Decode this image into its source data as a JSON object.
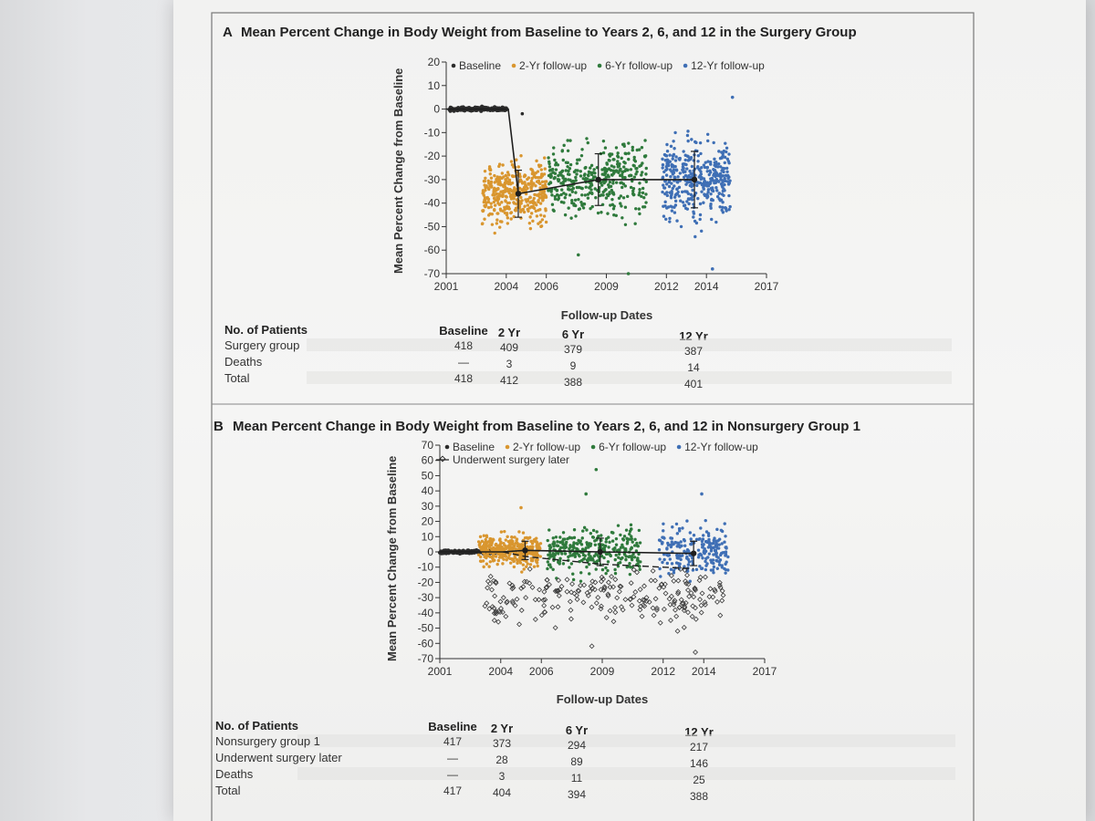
{
  "colors": {
    "baseline": "#2b2b2b",
    "yr2": "#d9962f",
    "yr6": "#2f7a3c",
    "yr12": "#3f6fb5",
    "surgery_later": "#3a3a3a",
    "mean_line": "#1e1e1e",
    "row_shade": "#e2e2e0"
  },
  "chart_data": [
    {
      "id": "A",
      "type": "scatter",
      "panel_letter": "A",
      "title": "Mean Percent Change in Body Weight from Baseline to Years 2, 6, and 12 in the Surgery Group",
      "ylabel": "Mean Percent Change from Baseline",
      "xlabel": "Follow-up Dates",
      "x_ticks": [
        2001,
        2004,
        2006,
        2009,
        2012,
        2014,
        2017
      ],
      "y_ticks": [
        20,
        10,
        0,
        -10,
        -20,
        -30,
        -40,
        -50,
        -60,
        -70
      ],
      "xlim": [
        2001,
        2017
      ],
      "ylim": [
        -70,
        20
      ],
      "legend": [
        "Baseline",
        "2-Yr follow-up",
        "6-Yr follow-up",
        "12-Yr follow-up"
      ],
      "legend_position": "top-left",
      "series": [
        {
          "name": "Baseline",
          "color_key": "baseline",
          "x_range": [
            2001.0,
            2004.0
          ],
          "y_center": 0,
          "y_spread": 0.5,
          "n": 160
        },
        {
          "name": "2-Yr follow-up",
          "color_key": "yr2",
          "x_range": [
            2002.8,
            2006.0
          ],
          "y_center": -36,
          "y_spread": 9,
          "n": 400
        },
        {
          "name": "6-Yr follow-up",
          "color_key": "yr6",
          "x_range": [
            2006.1,
            2011.0
          ],
          "y_center": -30,
          "y_spread": 10,
          "n": 380
        },
        {
          "name": "12-Yr follow-up",
          "color_key": "yr12",
          "x_range": [
            2011.8,
            2015.2
          ],
          "y_center": -30,
          "y_spread": 11,
          "n": 390
        }
      ],
      "outliers": [
        {
          "series": "Baseline",
          "x": 2004.8,
          "y": -2
        },
        {
          "series": "12-Yr follow-up",
          "x": 2015.3,
          "y": 5
        },
        {
          "series": "12-Yr follow-up",
          "x": 2014.3,
          "y": -68
        },
        {
          "series": "6-Yr follow-up",
          "x": 2010.1,
          "y": -70
        },
        {
          "series": "6-Yr follow-up",
          "x": 2007.6,
          "y": -62
        }
      ],
      "mean_line": [
        {
          "x": 2001.0,
          "y": 0
        },
        {
          "x": 2004.1,
          "y": 0
        },
        {
          "x": 2004.6,
          "y": -36,
          "err": 10
        },
        {
          "x": 2008.6,
          "y": -30,
          "err": 11
        },
        {
          "x": 2013.4,
          "y": -30,
          "err": 12
        }
      ],
      "table": {
        "header": "No. of Patients",
        "columns": [
          "Baseline",
          "2 Yr",
          "6 Yr",
          "12 Yr"
        ],
        "rows": [
          {
            "label": "Surgery group",
            "values": [
              "418",
              "409",
              "379",
              "387"
            ]
          },
          {
            "label": "Deaths",
            "values": [
              "—",
              "3",
              "9",
              "14"
            ]
          },
          {
            "label": "Total",
            "values": [
              "418",
              "412",
              "388",
              "401"
            ]
          }
        ]
      }
    },
    {
      "id": "B",
      "type": "scatter",
      "panel_letter": "B",
      "title": "Mean Percent Change in Body Weight from Baseline to Years 2, 6, and 12 in Nonsurgery Group 1",
      "ylabel": "Mean Percent Change from Baseline",
      "xlabel": "Follow-up Dates",
      "x_ticks": [
        2001,
        2004,
        2006,
        2009,
        2012,
        2014,
        2017
      ],
      "y_ticks": [
        70,
        60,
        50,
        40,
        30,
        20,
        10,
        0,
        -10,
        -20,
        -30,
        -40,
        -50,
        -60,
        -70
      ],
      "xlim": [
        2001,
        2017
      ],
      "ylim": [
        -70,
        70
      ],
      "legend": [
        "Baseline",
        "2-Yr follow-up",
        "6-Yr follow-up",
        "12-Yr follow-up",
        "Underwent surgery later"
      ],
      "legend_position": "top-left",
      "series": [
        {
          "name": "Baseline",
          "color_key": "baseline",
          "x_range": [
            2001.0,
            2004.0
          ],
          "y_center": 0,
          "y_spread": 0.6,
          "n": 160
        },
        {
          "name": "2-Yr follow-up",
          "color_key": "yr2",
          "x_range": [
            2002.9,
            2006.0
          ],
          "y_center": 1,
          "y_spread": 7,
          "n": 370
        },
        {
          "name": "6-Yr follow-up",
          "color_key": "yr6",
          "x_range": [
            2006.3,
            2010.9
          ],
          "y_center": 1,
          "y_spread": 10,
          "n": 300
        },
        {
          "name": "12-Yr follow-up",
          "color_key": "yr12",
          "x_range": [
            2011.8,
            2015.2
          ],
          "y_center": 0,
          "y_spread": 11,
          "n": 220
        },
        {
          "name": "Underwent surgery later",
          "color_key": "surgery_later",
          "x_range": [
            2003.2,
            2015.0
          ],
          "y_center": -30,
          "y_spread": 12,
          "n": 230,
          "hollow": true
        }
      ],
      "outliers": [
        {
          "series": "6-Yr follow-up",
          "x": 2008.7,
          "y": 54
        },
        {
          "series": "6-Yr follow-up",
          "x": 2008.2,
          "y": 38
        },
        {
          "series": "12-Yr follow-up",
          "x": 2013.9,
          "y": 38
        },
        {
          "series": "2-Yr follow-up",
          "x": 2005.0,
          "y": 29
        },
        {
          "series": "Underwent surgery later",
          "x": 2008.5,
          "y": -62
        },
        {
          "series": "Underwent surgery later",
          "x": 2013.6,
          "y": -66
        }
      ],
      "mean_line": [
        {
          "x": 2001.0,
          "y": 0
        },
        {
          "x": 2004.1,
          "y": 0
        },
        {
          "x": 2005.2,
          "y": 1,
          "err": 6
        },
        {
          "x": 2008.9,
          "y": 0,
          "err": 9
        },
        {
          "x": 2013.5,
          "y": -1,
          "err": 8
        }
      ],
      "mean_line_dashed": [
        {
          "x": 2004.1,
          "y": 0
        },
        {
          "x": 2005.2,
          "y": -3
        },
        {
          "x": 2008.9,
          "y": -8
        },
        {
          "x": 2013.5,
          "y": -11
        }
      ],
      "table": {
        "header": "No. of Patients",
        "columns": [
          "Baseline",
          "2 Yr",
          "6 Yr",
          "12 Yr"
        ],
        "rows": [
          {
            "label": "Nonsurgery group 1",
            "values": [
              "417",
              "373",
              "294",
              "217"
            ]
          },
          {
            "label": "Underwent surgery later",
            "values": [
              "—",
              "28",
              "89",
              "146"
            ]
          },
          {
            "label": "Deaths",
            "values": [
              "—",
              "3",
              "11",
              "25"
            ]
          },
          {
            "label": "Total",
            "values": [
              "417",
              "404",
              "394",
              "388"
            ]
          }
        ]
      }
    }
  ]
}
